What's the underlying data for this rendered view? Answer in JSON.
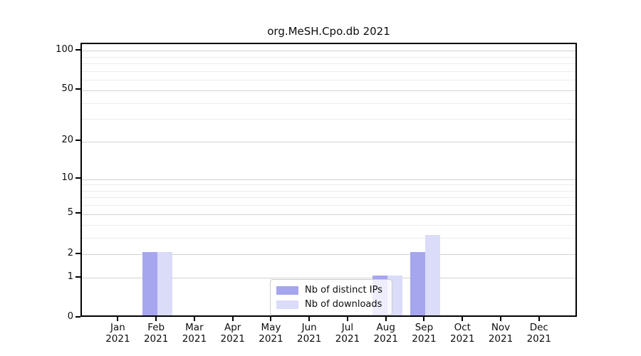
{
  "chart_data": {
    "type": "bar",
    "title": "org.MeSH.Cpo.db 2021",
    "categories": [
      {
        "month": "Jan",
        "year": "2021"
      },
      {
        "month": "Feb",
        "year": "2021"
      },
      {
        "month": "Mar",
        "year": "2021"
      },
      {
        "month": "Apr",
        "year": "2021"
      },
      {
        "month": "May",
        "year": "2021"
      },
      {
        "month": "Jun",
        "year": "2021"
      },
      {
        "month": "Jul",
        "year": "2021"
      },
      {
        "month": "Aug",
        "year": "2021"
      },
      {
        "month": "Sep",
        "year": "2021"
      },
      {
        "month": "Oct",
        "year": "2021"
      },
      {
        "month": "Nov",
        "year": "2021"
      },
      {
        "month": "Dec",
        "year": "2021"
      }
    ],
    "series": [
      {
        "name": "Nb of distinct IPs",
        "color": "#a6a6ee",
        "values": [
          0,
          2,
          0,
          0,
          0,
          0,
          0,
          1,
          2,
          0,
          0,
          0
        ]
      },
      {
        "name": "Nb of downloads",
        "color": "#dadcf8",
        "values": [
          0,
          2,
          0,
          0,
          0,
          0,
          0,
          1,
          3,
          0,
          0,
          0
        ]
      }
    ],
    "scale": "log10(1+x)",
    "ylim": [
      0,
      100
    ],
    "y_major_ticks": [
      0,
      1,
      2,
      5,
      10,
      20,
      50,
      100
    ],
    "y_minor_gridlines": [
      3,
      4,
      6,
      7,
      8,
      9,
      30,
      40,
      60,
      70,
      80,
      90
    ],
    "grid": true,
    "legend_position": "inside-bottom-center",
    "colors": {
      "grid_major": "#d2d2d2",
      "grid_minor": "#ececec",
      "axis": "#000000",
      "background": "#ffffff"
    }
  }
}
